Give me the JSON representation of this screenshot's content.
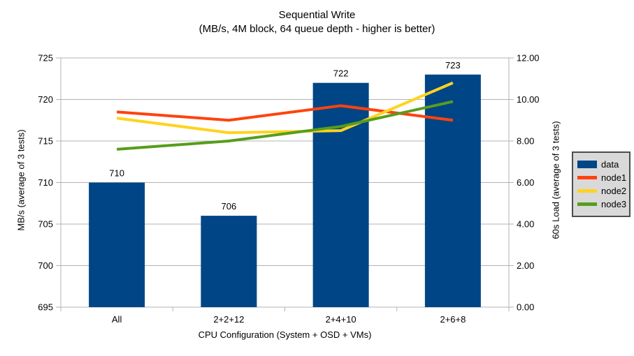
{
  "chart_data": {
    "type": "bar+line",
    "title": "Sequential Write",
    "subtitle": "(MB/s, 4M block, 64 queue depth - higher is better)",
    "categories": [
      "All",
      "2+2+12",
      "2+4+10",
      "2+6+8"
    ],
    "xlabel": "CPU Configuration (System + OSD + VMs)",
    "left_axis": {
      "label": "MB/s (average of 3 tests)",
      "min": 695,
      "max": 725,
      "tick_step": 5,
      "ticks": [
        "695",
        "700",
        "705",
        "710",
        "715",
        "720",
        "725"
      ]
    },
    "right_axis": {
      "label": "60s Load (average of 3 tests)",
      "min": 0,
      "max": 12,
      "tick_step": 2,
      "ticks": [
        "0.00",
        "2.00",
        "4.00",
        "6.00",
        "8.00",
        "10.00",
        "12.00"
      ]
    },
    "bar_series": {
      "name": "data",
      "axis": "left",
      "values": [
        710,
        706,
        722,
        723
      ],
      "labels": [
        "710",
        "706",
        "722",
        "723"
      ],
      "color": "#004586"
    },
    "line_series": [
      {
        "name": "node1",
        "axis": "right",
        "values": [
          9.4,
          9.0,
          9.7,
          9.0
        ],
        "color": "#ff420e"
      },
      {
        "name": "node2",
        "axis": "right",
        "values": [
          9.1,
          8.4,
          8.5,
          10.8
        ],
        "color": "#ffd320"
      },
      {
        "name": "node3",
        "axis": "right",
        "values": [
          7.6,
          8.0,
          8.7,
          9.9
        ],
        "color": "#579d1c"
      }
    ],
    "legend": {
      "position": "right",
      "entries": [
        "data",
        "node1",
        "node2",
        "node3"
      ]
    },
    "grid": true,
    "colors": {
      "gridline": "#b3b3b3",
      "axis_line": "#b3b3b3",
      "text": "#000000",
      "background": "#ffffff",
      "legend_bg": "#d9d9d9",
      "legend_border": "#4d4d4d"
    }
  }
}
